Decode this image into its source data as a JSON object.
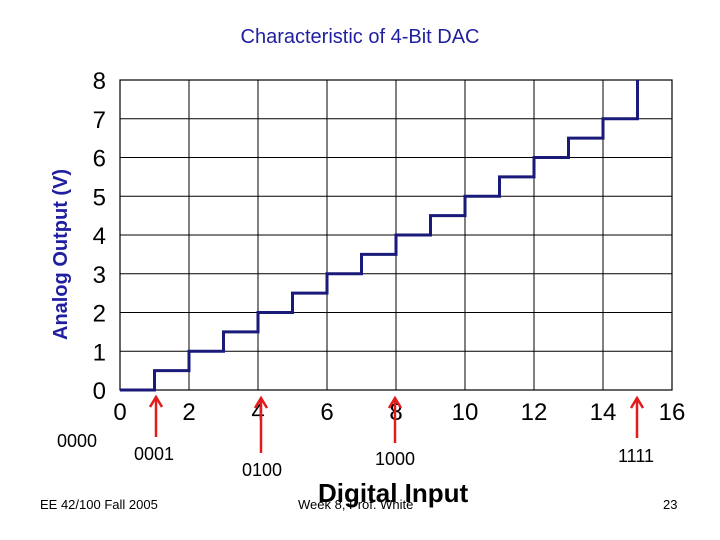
{
  "chart_data": {
    "type": "line",
    "title": "Characteristic of 4-Bit DAC",
    "xlabel": "Digital Input",
    "ylabel": "Analog Output (V)",
    "xlim": [
      0,
      16
    ],
    "ylim": [
      0,
      8
    ],
    "x_ticks": [
      "0",
      "2",
      "4",
      "6",
      "8",
      "10",
      "12",
      "14",
      "16"
    ],
    "y_ticks": [
      "0",
      "1",
      "2",
      "3",
      "4",
      "5",
      "6",
      "7",
      "8"
    ],
    "grid": true,
    "step": "post",
    "series": [
      {
        "x": [
          0,
          1,
          2,
          3,
          4,
          5,
          6,
          7,
          8,
          9,
          10,
          11,
          12,
          13,
          14,
          15
        ],
        "values": [
          0,
          0.5,
          1,
          1.5,
          2,
          2.5,
          3,
          3.5,
          4,
          4.5,
          5,
          5.5,
          6,
          6.5,
          7,
          7.5
        ],
        "color": "#1a1a7a"
      }
    ],
    "annotations": [
      {
        "text": "0000",
        "x": 0
      },
      {
        "text": "0001",
        "x": 1
      },
      {
        "text": "0100",
        "x": 4
      },
      {
        "text": "1000",
        "x": 8
      },
      {
        "text": "1111",
        "x": 15
      }
    ]
  },
  "footer": {
    "left": "EE 42/100 Fall 2005",
    "center": "Week 8, Prof. White",
    "page": "23"
  }
}
